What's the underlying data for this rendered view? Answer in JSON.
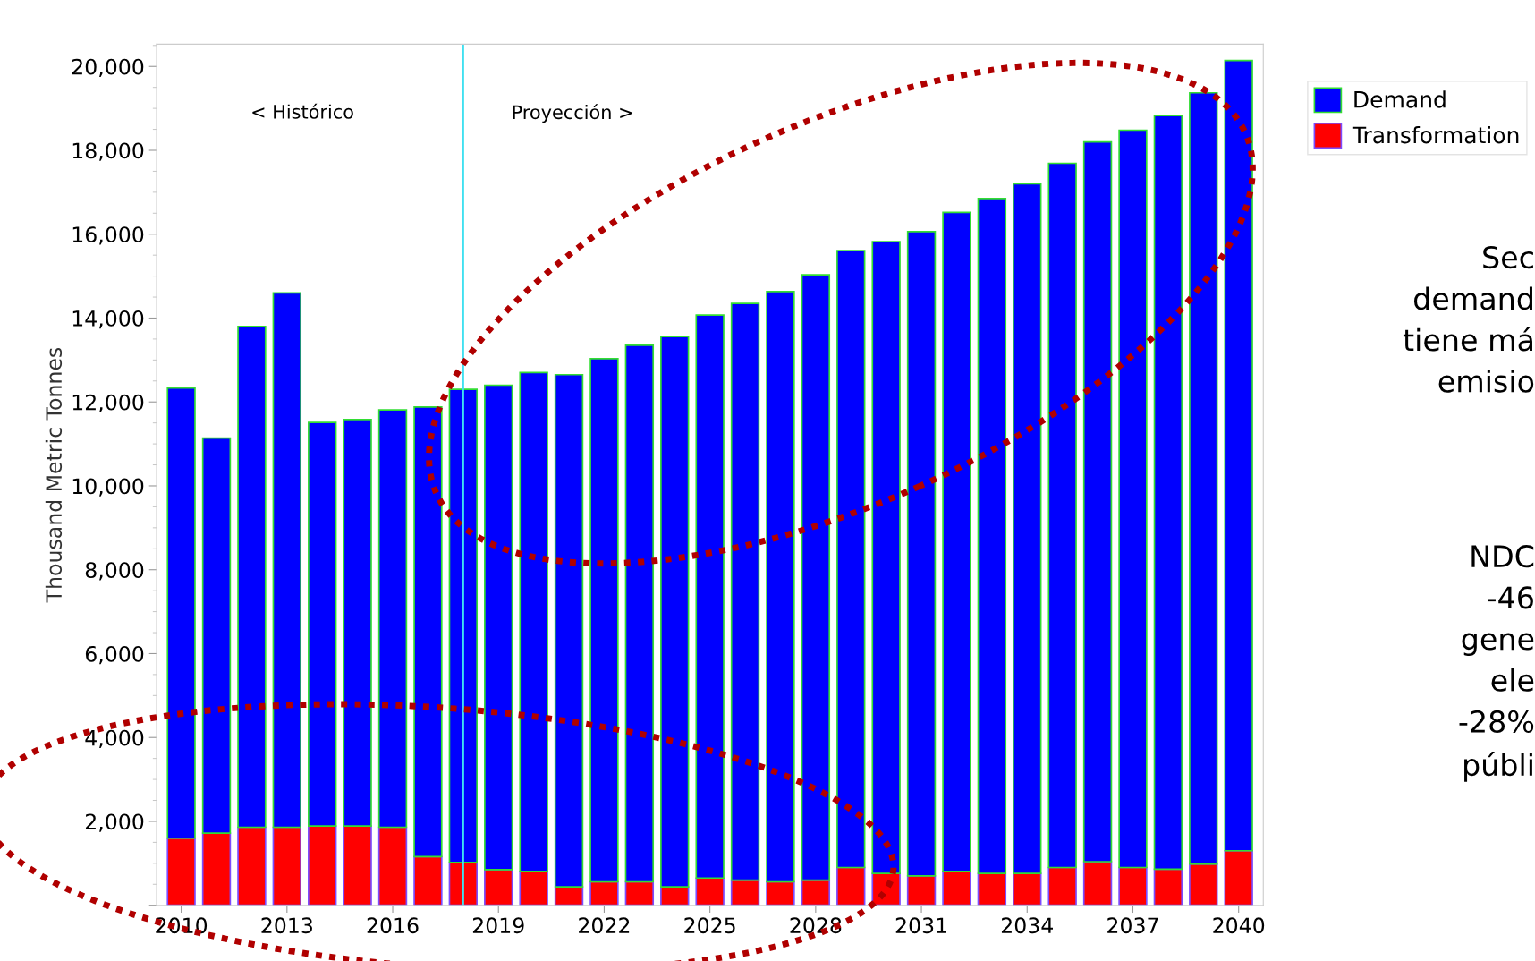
{
  "chart_data": {
    "type": "bar",
    "stacked": true,
    "ylabel": "Thousand Metric Tonnes",
    "x": [
      2010,
      2011,
      2012,
      2013,
      2014,
      2015,
      2016,
      2017,
      2018,
      2019,
      2020,
      2021,
      2022,
      2023,
      2024,
      2025,
      2026,
      2027,
      2028,
      2029,
      2030,
      2031,
      2032,
      2033,
      2034,
      2035,
      2036,
      2037,
      2038,
      2039,
      2040
    ],
    "series": [
      {
        "name": "Transformation",
        "color": "#ff0000",
        "values": [
          1600,
          1720,
          1860,
          1860,
          1890,
          1890,
          1860,
          1160,
          1020,
          850,
          810,
          440,
          560,
          560,
          440,
          650,
          600,
          560,
          600,
          900,
          760,
          700,
          810,
          760,
          760,
          900,
          1040,
          900,
          860,
          980,
          1300
        ]
      },
      {
        "name": "Demand",
        "color": "#0000ff",
        "values": [
          10730,
          9420,
          11940,
          12740,
          9620,
          9690,
          9950,
          10720,
          11280,
          11550,
          11890,
          12210,
          12470,
          12790,
          13120,
          13420,
          13750,
          14070,
          14430,
          14710,
          15060,
          15360,
          15710,
          16090,
          16440,
          16790,
          17160,
          17580,
          17970,
          18390,
          18840
        ]
      }
    ],
    "xlim": [
      2009.3,
      2040.7
    ],
    "xticks": [
      2010,
      2013,
      2016,
      2019,
      2022,
      2025,
      2028,
      2031,
      2034,
      2037,
      2040
    ],
    "ylim": [
      0,
      20530
    ],
    "yticks": [
      {
        "value": 0,
        "label": null
      },
      {
        "value": 2000,
        "label": "2,000"
      },
      {
        "value": 4000,
        "label": "4,000"
      },
      {
        "value": 6000,
        "label": "6,000"
      },
      {
        "value": 8000,
        "label": "8,000"
      },
      {
        "value": 10000,
        "label": "10,000"
      },
      {
        "value": 12000,
        "label": "12,000"
      },
      {
        "value": 14000,
        "label": "14,000"
      },
      {
        "value": 16000,
        "label": "16,000"
      },
      {
        "value": 18000,
        "label": "18,000"
      },
      {
        "value": 20000,
        "label": "20,000"
      }
    ],
    "ref_lines": [
      {
        "axis": "x",
        "value": 2018,
        "color": "#40e0f0"
      }
    ],
    "annotations": [
      "< Histórico",
      "Proyección >",
      "Sec\ndemand\ntiene má\nemisio",
      "NDC\n-46\ngene\nele\n-28%\npúbli"
    ],
    "legend": "right",
    "grid": false
  }
}
